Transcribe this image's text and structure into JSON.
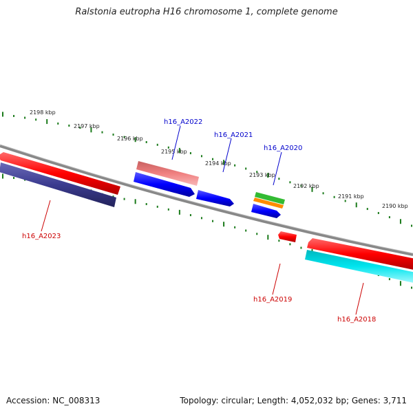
{
  "title": "Ralstonia eutropha H16 chromosome 1, complete genome",
  "footer": {
    "accession": "Accession: NC_008313",
    "summary": "Topology: circular; Length: 4,052,032 bp; Genes: 3,711"
  },
  "scale_labels": [
    "2198 kbp",
    "2197 kbp",
    "2196 kbp",
    "2195 kbp",
    "2194 kbp",
    "2193 kbp",
    "2192 kbp",
    "2191 kbp",
    "2190 kbp"
  ],
  "gene_labels": [
    {
      "name": "h16_A2022",
      "color": "#0000cc"
    },
    {
      "name": "h16_A2021",
      "color": "#0000cc"
    },
    {
      "name": "h16_A2020",
      "color": "#0000cc"
    },
    {
      "name": "h16_A2023",
      "color": "#cc0000"
    },
    {
      "name": "h16_A2019",
      "color": "#cc0000"
    },
    {
      "name": "h16_A2018",
      "color": "#cc0000"
    }
  ],
  "colors": {
    "backbone": "#888888",
    "ticks": "#1a7a1a",
    "forward_cds": "#ff0000",
    "reverse_cds": "#0000ff",
    "navy_feature": "#3b3b8f",
    "pink_feature": "#f08080",
    "cyan_feature": "#00e5ee",
    "green_feature": "#33bb33",
    "orange_feature": "#ff8c00"
  }
}
